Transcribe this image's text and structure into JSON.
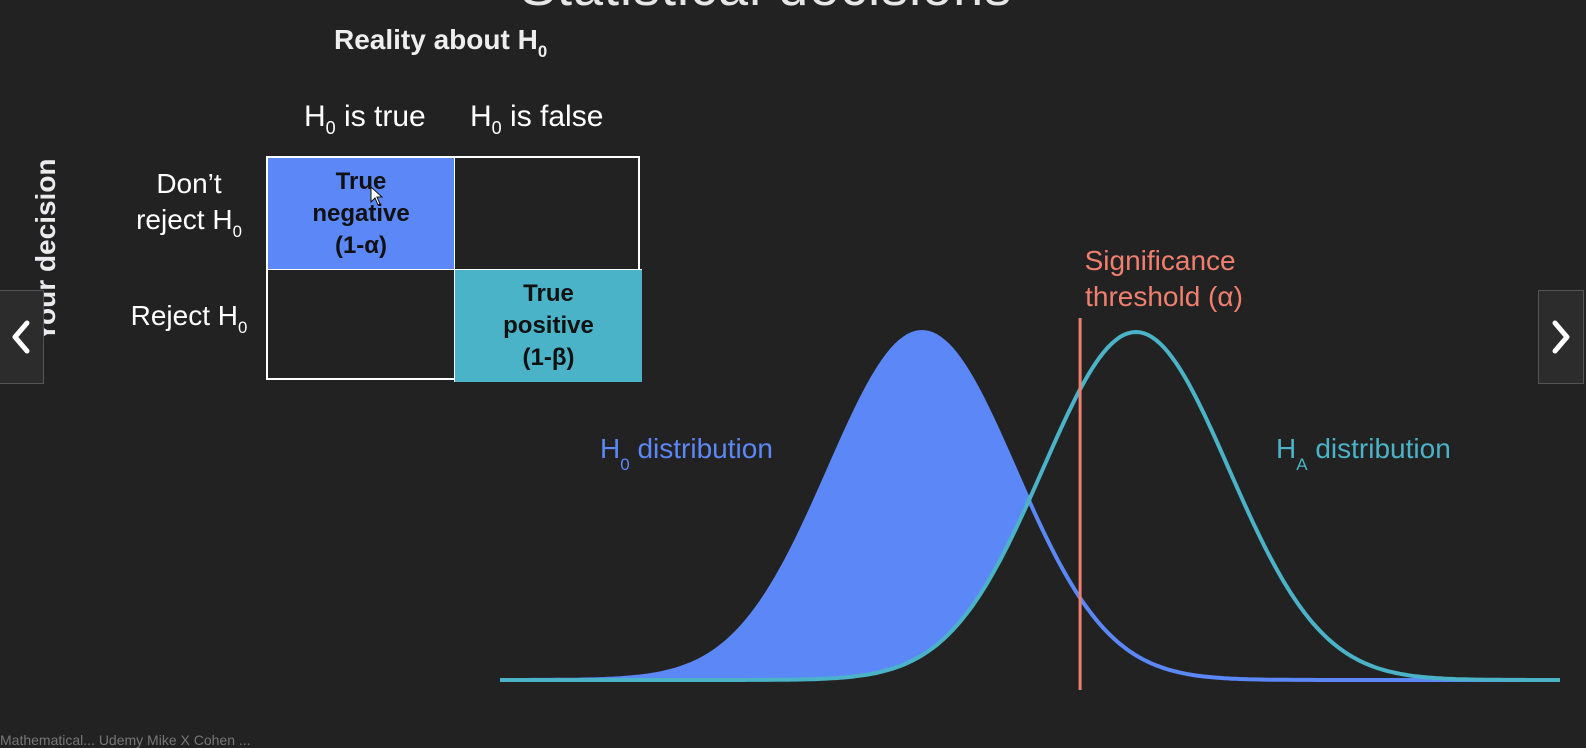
{
  "slide": {
    "title": "Statistical decisions",
    "reality_heading": "Reality about H",
    "reality_heading_sub": "0",
    "axis_label": "Your decision"
  },
  "columns": [
    {
      "pre": "H",
      "sub": "0",
      "post": " is true"
    },
    {
      "pre": "H",
      "sub": "0",
      "post": " is false"
    }
  ],
  "rows": [
    {
      "line1": "Don’t",
      "line2": "reject H",
      "sub": "0"
    },
    {
      "pre": "Reject H",
      "sub": "0"
    }
  ],
  "cells": {
    "true_negative": {
      "line1": "True",
      "line2": "negative",
      "line3": "(1-α)"
    },
    "false_negative": "",
    "false_positive": "",
    "true_positive": {
      "line1": "True",
      "line2": "positive",
      "line3": "(1-β)"
    }
  },
  "distributions": {
    "h0_label_pre": "H",
    "h0_label_sub": "0",
    "h0_label_post": " distribution",
    "ha_label_pre": "H",
    "ha_label_sub": "A",
    "ha_label_post": " distribution",
    "threshold_line1": "Significance",
    "threshold_line2": "threshold (α)",
    "h0_mean": 0,
    "ha_mean": 2.3,
    "threshold": 1.7,
    "colors": {
      "h0": "#5b87f7",
      "ha": "#4bb3c7",
      "threshold": "#f07f6e"
    }
  },
  "footer": "Mathematical... Udemy Mike X Cohen ..."
}
